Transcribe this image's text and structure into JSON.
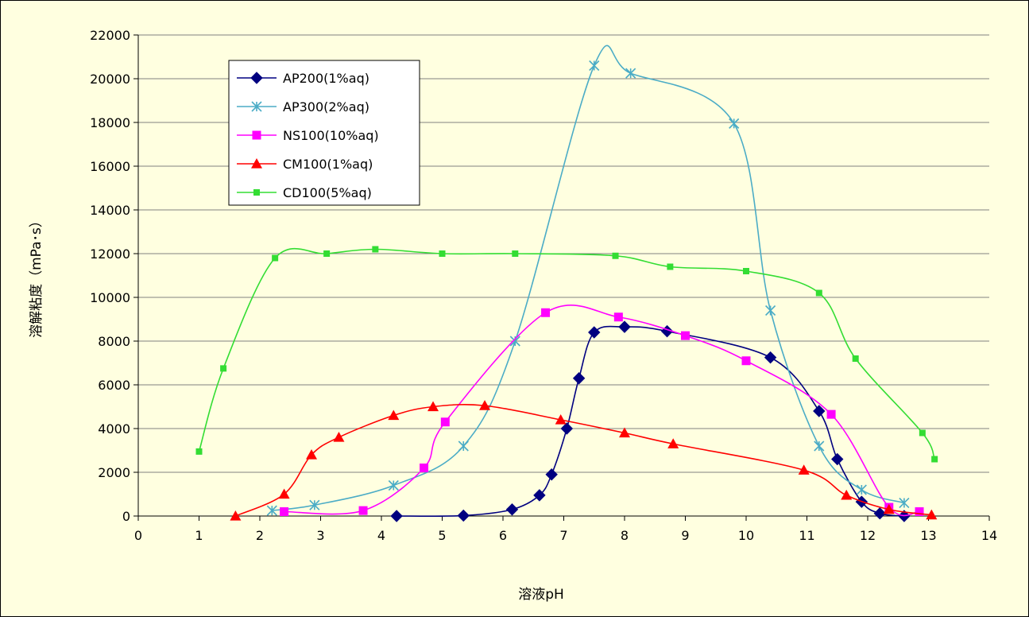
{
  "chart_data": {
    "type": "line",
    "xlabel": "溶液pH",
    "ylabel": "溶解粘度（mPa･s）",
    "xlim": [
      0,
      14
    ],
    "ylim": [
      0,
      22000
    ],
    "x_ticks": [
      0,
      1,
      2,
      3,
      4,
      5,
      6,
      7,
      8,
      9,
      10,
      11,
      12,
      13,
      14
    ],
    "y_ticks": [
      0,
      2000,
      4000,
      6000,
      8000,
      10000,
      12000,
      14000,
      16000,
      18000,
      20000,
      22000
    ],
    "grid": "horizontal",
    "legend_position": "top-left",
    "series": [
      {
        "name": "AP200(1%aq)",
        "color": "#000080",
        "marker": "diamond",
        "points": [
          [
            4.25,
            0
          ],
          [
            5.35,
            20
          ],
          [
            6.15,
            300
          ],
          [
            6.6,
            950
          ],
          [
            6.8,
            1900
          ],
          [
            7.05,
            4000
          ],
          [
            7.25,
            6300
          ],
          [
            7.5,
            8400
          ],
          [
            8.0,
            8650
          ],
          [
            8.7,
            8450
          ],
          [
            10.4,
            7250
          ],
          [
            11.2,
            4800
          ],
          [
            11.5,
            2600
          ],
          [
            11.9,
            650
          ],
          [
            12.2,
            120
          ],
          [
            12.6,
            0
          ]
        ]
      },
      {
        "name": "AP300(2%aq)",
        "color": "#4bacc6",
        "marker": "star",
        "points": [
          [
            2.2,
            250
          ],
          [
            2.9,
            500
          ],
          [
            4.2,
            1400
          ],
          [
            5.35,
            3200
          ],
          [
            6.2,
            8000
          ],
          [
            7.5,
            20600
          ],
          [
            8.1,
            20250
          ],
          [
            9.8,
            17950
          ],
          [
            10.4,
            9400
          ],
          [
            11.2,
            3200
          ],
          [
            11.9,
            1200
          ],
          [
            12.6,
            600
          ]
        ]
      },
      {
        "name": "NS100(10%aq)",
        "color": "#ff00ff",
        "marker": "square",
        "points": [
          [
            2.4,
            200
          ],
          [
            3.7,
            250
          ],
          [
            4.7,
            2200
          ],
          [
            5.05,
            4300
          ],
          [
            6.7,
            9300
          ],
          [
            7.9,
            9100
          ],
          [
            9.0,
            8250
          ],
          [
            10.0,
            7100
          ],
          [
            11.4,
            4650
          ],
          [
            12.35,
            400
          ],
          [
            12.85,
            200
          ]
        ]
      },
      {
        "name": "CM100(1%aq)",
        "color": "#ff0000",
        "marker": "triangle",
        "points": [
          [
            1.6,
            0
          ],
          [
            2.4,
            1000
          ],
          [
            2.85,
            2800
          ],
          [
            3.3,
            3600
          ],
          [
            4.2,
            4600
          ],
          [
            4.85,
            5000
          ],
          [
            5.7,
            5050
          ],
          [
            6.95,
            4400
          ],
          [
            8.0,
            3800
          ],
          [
            8.8,
            3300
          ],
          [
            10.95,
            2100
          ],
          [
            11.65,
            950
          ],
          [
            12.35,
            300
          ],
          [
            13.05,
            50
          ]
        ]
      },
      {
        "name": "CD100(5%aq)",
        "color": "#33dd33",
        "marker": "square-small",
        "points": [
          [
            1.0,
            2950
          ],
          [
            1.4,
            6750
          ],
          [
            2.25,
            11800
          ],
          [
            3.1,
            12000
          ],
          [
            3.9,
            12200
          ],
          [
            5.0,
            12000
          ],
          [
            6.2,
            12000
          ],
          [
            7.85,
            11900
          ],
          [
            8.75,
            11400
          ],
          [
            10.0,
            11200
          ],
          [
            11.2,
            10200
          ],
          [
            11.8,
            7200
          ],
          [
            12.9,
            3800
          ],
          [
            13.1,
            2600
          ]
        ]
      }
    ]
  }
}
